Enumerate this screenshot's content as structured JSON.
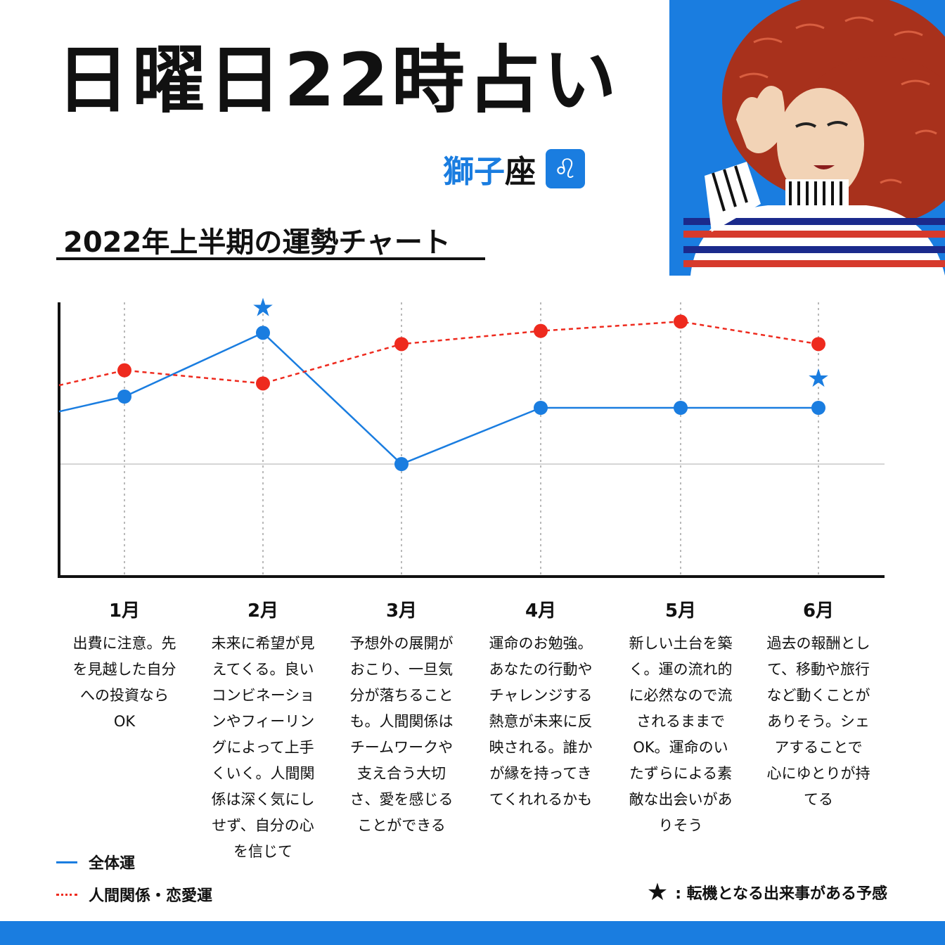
{
  "header": {
    "title": "日曜日22時占い",
    "sign_prefix": "獅子",
    "sign_suffix": "座",
    "sign_symbol": "♌",
    "subtitle": "2022年上半期の運勢チャート"
  },
  "colors": {
    "accent_blue": "#1a7de0",
    "accent_red": "#ee2a1e"
  },
  "chart_data": {
    "type": "line",
    "categories": [
      "1月",
      "2月",
      "3月",
      "4月",
      "5月",
      "6月"
    ],
    "series": [
      {
        "name": "全体運",
        "style": "solid",
        "color": "#1a7de0",
        "start_value": 3.8,
        "values": [
          4.6,
          8.0,
          1.0,
          4.0,
          4.0,
          4.0
        ]
      },
      {
        "name": "人間関係・恋愛運",
        "style": "dashed",
        "color": "#ee2a1e",
        "start_value": 5.2,
        "values": [
          6.0,
          5.3,
          7.4,
          8.1,
          8.6,
          7.4
        ]
      }
    ],
    "stars": [
      {
        "month": "2月",
        "series": "全体運"
      },
      {
        "month": "6月",
        "series": "全体運"
      }
    ],
    "baseline": 1.0,
    "ylim": [
      -5,
      10
    ],
    "grid": "vertical dotted"
  },
  "months": [
    {
      "label": "1月",
      "text": "出費に注意。先\nを見越した自分\nへの投資なら\nOK"
    },
    {
      "label": "2月",
      "text": "未来に希望が見\nえてくる。良い\nコンビネーショ\nンやフィーリン\nグによって上手\nくいく。人間関\n係は深く気にし\nせず、自分の心\nを信じて"
    },
    {
      "label": "3月",
      "text": "予想外の展開が\nおこり、一旦気\n分が落ちること\nも。人間関係は\nチームワークや\n支え合う大切\nさ、愛を感じる\nことができる"
    },
    {
      "label": "4月",
      "text": "運命のお勉強。\nあなたの行動や\nチャレンジする\n熱意が未来に反\n映される。誰か\nが縁を持ってき\nてくれれるかも"
    },
    {
      "label": "5月",
      "text": "新しい土台を築\nく。運の流れ的\nに必然なので流\nされるままで\nOK。運命のい\nたずらによる素\n敵な出会いがあ\nりそう"
    },
    {
      "label": "6月",
      "text": "過去の報酬とし\nて、移動や旅行\nなど動くことが\nありそう。シェ\nアすることで\n心にゆとりが持\nてる"
    }
  ],
  "legend": {
    "overall": "全体運",
    "relationship": "人間関係・恋愛運"
  },
  "note": {
    "star": "★",
    "text": ": 転機となる出来事がある予感"
  }
}
